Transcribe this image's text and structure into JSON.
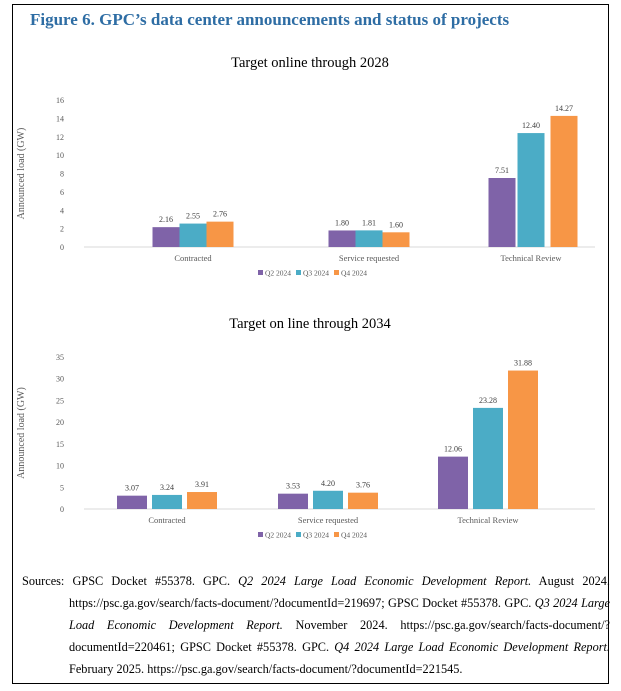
{
  "figure_title": "Figure 6. GPC’s data center announcements and status of projects",
  "colors": {
    "Q2 2024": "#7f63a8",
    "Q3 2024": "#4bacc6",
    "Q4 2024": "#f79646",
    "title": "#2e6da4"
  },
  "chart_data": [
    {
      "type": "bar",
      "title": "Target online through 2028",
      "ylabel": "Announced load (GW)",
      "xlabel": "",
      "ylim": [
        0,
        16
      ],
      "yticks": [
        "0",
        "2",
        "4",
        "6",
        "8",
        "10",
        "12",
        "14",
        "16"
      ],
      "categories": [
        "Contracted",
        "Service requested",
        "Technical Review"
      ],
      "series": [
        {
          "name": "Q2 2024",
          "values": [
            2.16,
            1.8,
            7.51
          ],
          "labels": [
            "2.16",
            "1.80",
            "7.51"
          ]
        },
        {
          "name": "Q3 2024",
          "values": [
            2.55,
            1.81,
            12.4
          ],
          "labels": [
            "2.55",
            "1.81",
            "12.40"
          ]
        },
        {
          "name": "Q4 2024",
          "values": [
            2.76,
            1.6,
            14.27
          ],
          "labels": [
            "2.76",
            "1.60",
            "14.27"
          ]
        }
      ],
      "legend": "bottom",
      "grid": false
    },
    {
      "type": "bar",
      "title": "Target on line through 2034",
      "ylabel": "Announced load (GW)",
      "xlabel": "",
      "ylim": [
        0,
        35
      ],
      "yticks": [
        "0",
        "5",
        "10",
        "15",
        "20",
        "25",
        "30",
        "35"
      ],
      "categories": [
        "Contracted",
        "Service requested",
        "Technical Review"
      ],
      "series": [
        {
          "name": "Q2 2024",
          "values": [
            3.07,
            3.53,
            12.06
          ],
          "labels": [
            "3.07",
            "3.53",
            "12.06"
          ]
        },
        {
          "name": "Q3 2024",
          "values": [
            3.24,
            4.2,
            23.28
          ],
          "labels": [
            "3.24",
            "4.20",
            "23.28"
          ]
        },
        {
          "name": "Q4 2024",
          "values": [
            3.91,
            3.76,
            31.88
          ],
          "labels": [
            "3.91",
            "3.76",
            "31.88"
          ]
        }
      ],
      "legend": "bottom",
      "grid": false
    }
  ],
  "sources": {
    "label": "Sources:",
    "p1": " GPSC Docket #55378. GPC. ",
    "t1": "Q2 2024 Large Load Economic Development Report.",
    "p2": " August 2024. https://psc.ga.gov/search/facts-document/?documentId=219697; GPSC Docket #55378. GPC. ",
    "t2": "Q3 2024 Large Load Economic Development Report.",
    "p3": " November 2024. https://psc.ga.gov/search/facts-document/?documentId=220461; GPSC Docket #55378. GPC. ",
    "t3": "Q4 2024 Large Load Economic Development Report.",
    "p4": " February 2025. https://psc.ga.gov/search/facts-document/?documentId=221545."
  }
}
